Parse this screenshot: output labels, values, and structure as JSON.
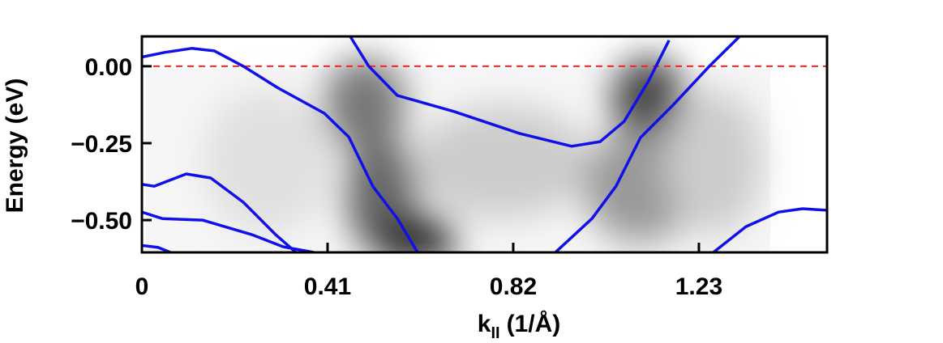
{
  "chart_data": {
    "type": "line",
    "ylabel": "Energy (eV)",
    "xlabel": "k",
    "xlabel_sub": "II",
    "xlabel_unit": "(1/Å)",
    "xlim": [
      0,
      1.513
    ],
    "ylim": [
      -0.605,
      0.097
    ],
    "xticks": [
      0,
      0.41,
      0.82,
      1.23
    ],
    "yticks": [
      {
        "value": 0,
        "label": "0.00"
      },
      {
        "value": -0.25,
        "label": "−0.25"
      },
      {
        "value": -0.5,
        "label": "−0.50"
      }
    ],
    "reference_line": {
      "y": 0,
      "color": "#ff2020"
    },
    "series": [
      {
        "color": "#1010e8",
        "x": [
          0,
          0.05,
          0.11,
          0.16,
          0.224,
          0.3,
          0.403,
          0.457,
          0.51,
          0.564,
          0.609
        ],
        "values": [
          0.03,
          0.045,
          0.058,
          0.05,
          0.0,
          -0.07,
          -0.153,
          -0.23,
          -0.39,
          -0.495,
          -0.605
        ]
      },
      {
        "color": "#1010e8",
        "x": [
          0.46,
          0.501,
          0.564,
          0.689,
          0.833,
          0.949,
          1.012,
          1.065,
          1.119,
          1.164
        ],
        "values": [
          0.097,
          0.0,
          -0.095,
          -0.147,
          -0.218,
          -0.26,
          -0.245,
          -0.179,
          -0.047,
          0.084
        ]
      },
      {
        "color": "#1010e8",
        "x": [
          0.913,
          0.994,
          1.047,
          1.101,
          1.173,
          1.253,
          1.32
        ],
        "values": [
          -0.605,
          -0.495,
          -0.39,
          -0.232,
          -0.126,
          0.0,
          0.097
        ]
      },
      {
        "color": "#1010e8",
        "x": [
          0,
          0.027,
          0.098,
          0.152,
          0.224,
          0.295,
          0.34
        ],
        "values": [
          -0.384,
          -0.39,
          -0.35,
          -0.363,
          -0.442,
          -0.547,
          -0.605
        ]
      },
      {
        "color": "#1010e8",
        "x": [
          0,
          0.045,
          0.134,
          0.242,
          0.313,
          0.38
        ],
        "values": [
          -0.474,
          -0.495,
          -0.5,
          -0.547,
          -0.587,
          -0.605
        ]
      },
      {
        "color": "#1010e8",
        "x": [
          0,
          0.036,
          0.063
        ],
        "values": [
          -0.582,
          -0.589,
          -0.605
        ]
      },
      {
        "color": "#1010e8",
        "x": [
          1.262,
          1.334,
          1.406,
          1.459,
          1.513
        ],
        "values": [
          -0.605,
          -0.521,
          -0.474,
          -0.463,
          -0.468
        ]
      }
    ]
  }
}
